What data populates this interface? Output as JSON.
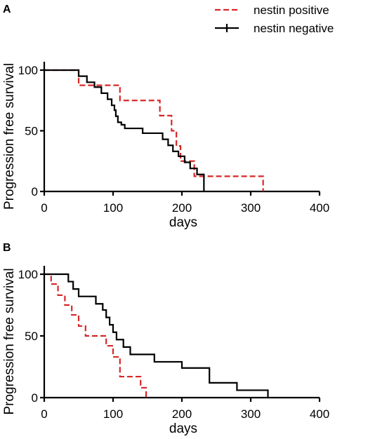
{
  "legend": {
    "items": [
      {
        "label": "nestin positive",
        "color": "#d62728",
        "style": "dashed"
      },
      {
        "label": "nestin negative",
        "color": "#000000",
        "style": "solid-censored"
      }
    ]
  },
  "chart_data": [
    {
      "type": "line",
      "panel": "A",
      "xlabel": "days",
      "ylabel": "Progression free survival",
      "xlim": [
        0,
        400
      ],
      "ylim": [
        0,
        100
      ],
      "xticks": [
        0,
        100,
        200,
        300,
        400
      ],
      "yticks": [
        0,
        50,
        100
      ],
      "step": true,
      "series": [
        {
          "name": "nestin positive",
          "color": "#d62728",
          "dash": "dashed",
          "x": [
            0,
            50,
            110,
            168,
            185,
            192,
            198,
            218,
            318
          ],
          "y": [
            100,
            87.5,
            75,
            62.5,
            50,
            37.5,
            25,
            12.5,
            0
          ]
        },
        {
          "name": "nestin negative",
          "color": "#000000",
          "dash": "solid",
          "x": [
            0,
            50,
            62,
            73,
            83,
            92,
            98,
            102,
            104,
            107,
            112,
            117,
            125,
            143,
            172,
            180,
            187,
            195,
            204,
            212,
            222,
            232
          ],
          "y": [
            100,
            95,
            90,
            86,
            81,
            76,
            71,
            67,
            62,
            57,
            55,
            52,
            52,
            48,
            43,
            38,
            33,
            29,
            24,
            19,
            14,
            0
          ]
        }
      ]
    },
    {
      "type": "line",
      "panel": "B",
      "xlabel": "days",
      "ylabel": "Progression free survival",
      "xlim": [
        0,
        400
      ],
      "ylim": [
        0,
        100
      ],
      "xticks": [
        0,
        100,
        200,
        300,
        400
      ],
      "yticks": [
        0,
        50,
        100
      ],
      "step": true,
      "series": [
        {
          "name": "nestin positive",
          "color": "#d62728",
          "dash": "dashed",
          "x": [
            0,
            10,
            20,
            30,
            40,
            50,
            60,
            90,
            100,
            110,
            120,
            140,
            148
          ],
          "y": [
            100,
            92,
            83,
            75,
            67,
            58,
            50,
            42,
            33,
            17,
            17,
            8,
            0
          ]
        },
        {
          "name": "nestin negative",
          "color": "#000000",
          "dash": "solid",
          "x": [
            0,
            35,
            42,
            50,
            75,
            85,
            90,
            95,
            100,
            105,
            115,
            125,
            130,
            160,
            200,
            240,
            280,
            325
          ],
          "y": [
            100,
            94,
            88,
            82,
            76,
            71,
            65,
            59,
            53,
            47,
            41,
            35,
            35,
            29,
            24,
            12,
            6,
            0
          ]
        }
      ]
    }
  ]
}
